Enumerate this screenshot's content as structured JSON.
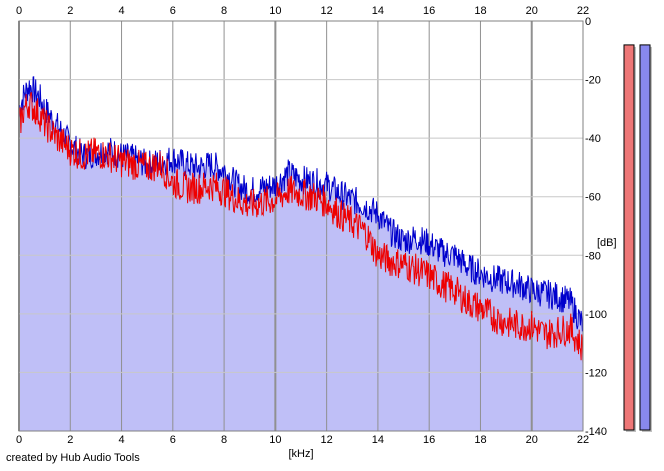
{
  "window": {
    "credit": "created by Hub Audio Tools"
  },
  "chart_data": {
    "type": "area",
    "xlabel": "[kHz]",
    "ylabel": "[dB]",
    "xlim": [
      0,
      22
    ],
    "ylim": [
      -140,
      0
    ],
    "x_ticks": [
      "0",
      "2",
      "4",
      "6",
      "8",
      "10",
      "12",
      "14",
      "16",
      "18",
      "20",
      "22"
    ],
    "y_ticks": [
      "0",
      "-20",
      "-40",
      "-60",
      "-80",
      "-100",
      "-120",
      "-140"
    ],
    "grid": true,
    "series": [
      {
        "color": "#0000cc",
        "x": [
          0,
          0.2,
          0.4,
          0.6,
          0.8,
          1.0,
          1.5,
          2.0,
          2.5,
          3.0,
          3.5,
          4.0,
          4.5,
          5.0,
          5.5,
          6.0,
          6.5,
          7.0,
          7.5,
          8.0,
          8.5,
          9.0,
          9.5,
          10.0,
          10.5,
          11.0,
          11.5,
          12.0,
          12.5,
          13.0,
          13.5,
          14.0,
          14.5,
          15.0,
          15.5,
          16.0,
          16.5,
          17.0,
          17.5,
          18.0,
          18.5,
          19.0,
          19.5,
          20.0,
          20.5,
          21.0,
          21.5,
          22.0
        ],
        "values": [
          -30,
          -25,
          -22,
          -24,
          -26,
          -30,
          -36,
          -42,
          -46,
          -45,
          -44,
          -46,
          -47,
          -49,
          -48,
          -47,
          -49,
          -50,
          -49,
          -51,
          -56,
          -58,
          -57,
          -56,
          -52,
          -54,
          -55,
          -56,
          -59,
          -61,
          -63,
          -66,
          -72,
          -75,
          -74,
          -76,
          -79,
          -80,
          -84,
          -86,
          -88,
          -89,
          -90,
          -92,
          -93,
          -94,
          -96,
          -104
        ]
      },
      {
        "color": "#ee0000",
        "x": [
          0,
          0.2,
          0.4,
          0.6,
          0.8,
          1.0,
          1.5,
          2.0,
          2.5,
          3.0,
          3.5,
          4.0,
          4.5,
          5.0,
          5.5,
          6.0,
          6.5,
          7.0,
          7.5,
          8.0,
          8.5,
          9.0,
          9.5,
          10.0,
          10.5,
          11.0,
          11.5,
          12.0,
          12.5,
          13.0,
          13.5,
          14.0,
          14.5,
          15.0,
          15.5,
          16.0,
          16.5,
          17.0,
          17.5,
          18.0,
          18.5,
          19.0,
          19.5,
          20.0,
          20.5,
          21.0,
          21.5,
          22.0
        ],
        "values": [
          -36,
          -30,
          -28,
          -30,
          -32,
          -35,
          -40,
          -44,
          -46,
          -45,
          -46,
          -48,
          -49,
          -50,
          -49,
          -55,
          -57,
          -57,
          -56,
          -58,
          -61,
          -63,
          -62,
          -61,
          -58,
          -59,
          -60,
          -62,
          -66,
          -69,
          -72,
          -80,
          -82,
          -83,
          -85,
          -87,
          -90,
          -92,
          -96,
          -98,
          -101,
          -103,
          -104,
          -104,
          -107,
          -106,
          -105,
          -112
        ]
      }
    ],
    "meters": [
      {
        "color": "#ee7777",
        "level": 0.97
      },
      {
        "color": "#8888ee",
        "level": 0.97
      }
    ]
  }
}
